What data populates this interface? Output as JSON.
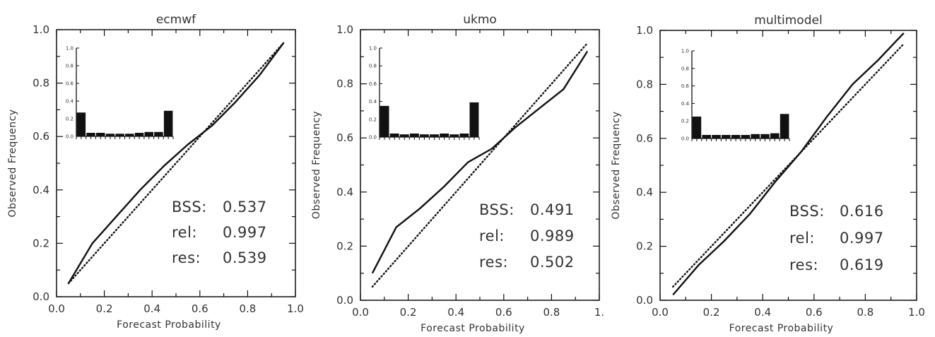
{
  "chart_data": [
    {
      "type": "line",
      "title": "ecmwf",
      "xlabel": "Forecast Probability",
      "ylabel": "Observed Frequency",
      "xlim": [
        0,
        1
      ],
      "ylim": [
        0,
        1
      ],
      "xticks": [
        "0.0",
        "0.2",
        "0.4",
        "0.6",
        "0.8",
        "1.0"
      ],
      "yticks": [
        "0.0",
        "0.2",
        "0.4",
        "0.6",
        "0.8",
        "1.0"
      ],
      "series": [
        {
          "style": "solid",
          "x": [
            0.05,
            0.15,
            0.25,
            0.35,
            0.45,
            0.55,
            0.65,
            0.75,
            0.85,
            0.95
          ],
          "y": [
            0.05,
            0.2,
            0.3,
            0.4,
            0.49,
            0.57,
            0.64,
            0.73,
            0.83,
            0.95
          ]
        },
        {
          "style": "dotted",
          "x": [
            0.05,
            0.95
          ],
          "y": [
            0.05,
            0.95
          ]
        }
      ],
      "inset": {
        "type": "bar",
        "yticks": [
          "0.0",
          "0.2",
          "0.4",
          "0.6",
          "0.8",
          "1.0"
        ],
        "ylim": [
          0,
          1
        ],
        "values": [
          0.27,
          0.04,
          0.04,
          0.03,
          0.03,
          0.03,
          0.04,
          0.05,
          0.05,
          0.29
        ]
      },
      "stats": [
        {
          "label": "BSS:",
          "value": "0.537"
        },
        {
          "label": "rel:",
          "value": "0.997"
        },
        {
          "label": "res:",
          "value": "0.539"
        }
      ]
    },
    {
      "type": "line",
      "title": "ukmo",
      "xlabel": "Forecast Probability",
      "ylabel": "Observed Frequency",
      "xlim": [
        0,
        1
      ],
      "ylim": [
        0,
        1
      ],
      "xticks": [
        "0.0",
        "0.2",
        "0.4",
        "0.6",
        "0.8",
        "1."
      ],
      "yticks": [
        "0.0",
        "0.2",
        "0.4",
        "0.6",
        "0.8",
        "1.0"
      ],
      "series": [
        {
          "style": "solid",
          "x": [
            0.05,
            0.15,
            0.25,
            0.35,
            0.45,
            0.55,
            0.65,
            0.75,
            0.85,
            0.95
          ],
          "y": [
            0.1,
            0.27,
            0.34,
            0.42,
            0.51,
            0.56,
            0.64,
            0.71,
            0.78,
            0.92
          ]
        },
        {
          "style": "dotted",
          "x": [
            0.05,
            0.95
          ],
          "y": [
            0.05,
            0.95
          ]
        }
      ],
      "inset": {
        "type": "bar",
        "yticks": [
          "0.0",
          "0.2",
          "0.4",
          "0.6",
          "0.8",
          "1.0"
        ],
        "ylim": [
          0,
          1
        ],
        "values": [
          0.35,
          0.04,
          0.03,
          0.04,
          0.03,
          0.03,
          0.04,
          0.03,
          0.04,
          0.39
        ]
      },
      "stats": [
        {
          "label": "BSS:",
          "value": "0.491"
        },
        {
          "label": "rel:",
          "value": "0.989"
        },
        {
          "label": "res:",
          "value": "0.502"
        }
      ]
    },
    {
      "type": "line",
      "title": "multimodel",
      "xlabel": "Forecast Probability",
      "ylabel": "Observed Frequency",
      "xlim": [
        0,
        1
      ],
      "ylim": [
        0,
        1
      ],
      "xticks": [
        "0.0",
        "0.2",
        "0.4",
        "0.6",
        "0.8",
        "1.0"
      ],
      "yticks": [
        "0.0",
        "0.2",
        "0.4",
        "0.6",
        "0.8",
        "1.0"
      ],
      "series": [
        {
          "style": "solid",
          "x": [
            0.05,
            0.15,
            0.25,
            0.35,
            0.45,
            0.55,
            0.65,
            0.75,
            0.85,
            0.95
          ],
          "y": [
            0.02,
            0.13,
            0.22,
            0.32,
            0.44,
            0.55,
            0.68,
            0.8,
            0.89,
            0.99
          ]
        },
        {
          "style": "dotted",
          "x": [
            0.05,
            0.95
          ],
          "y": [
            0.05,
            0.95
          ]
        }
      ],
      "inset": {
        "type": "bar",
        "yticks": [
          "0.0",
          "0.2",
          "0.4",
          "0.6",
          "0.8",
          "1.0"
        ],
        "ylim": [
          0,
          1
        ],
        "values": [
          0.25,
          0.04,
          0.04,
          0.04,
          0.04,
          0.04,
          0.05,
          0.05,
          0.06,
          0.28
        ]
      },
      "stats": [
        {
          "label": "BSS:",
          "value": "0.616"
        },
        {
          "label": "rel:",
          "value": "0.997"
        },
        {
          "label": "res:",
          "value": "0.619"
        }
      ]
    }
  ]
}
